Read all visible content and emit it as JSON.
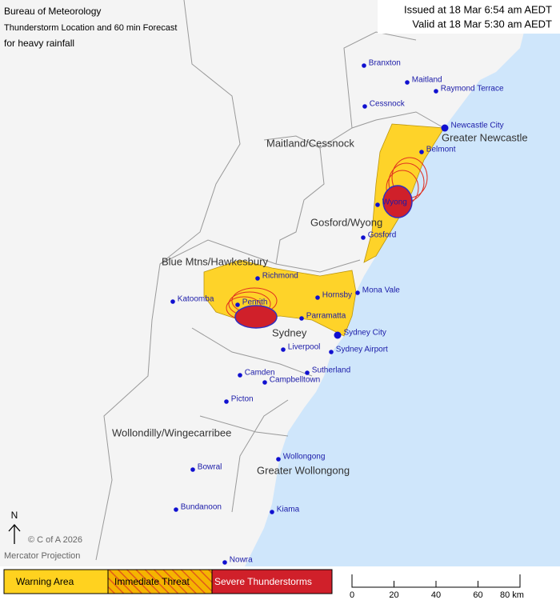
{
  "header": {
    "title": "Bureau of Meteorology",
    "subtitle": "Thunderstorm Location and 60 min Forecast",
    "hazard": "for heavy rainfall",
    "issued": "Issued at 18 Mar 6:54 am AEDT",
    "valid": "Valid at 18 Mar 5:30 am AEDT"
  },
  "regions": [
    "Maitland/Cessnock",
    "Greater Newcastle",
    "Gosford/Wyong",
    "Blue Mtns/Hawkesbury",
    "Sydney",
    "Wollondilly/Wingecarribee",
    "Greater Wollongong"
  ],
  "places": [
    "Branxton",
    "Maitland",
    "Raymond Terrace",
    "Cessnock",
    "Newcastle City",
    "Belmont",
    "Wyong",
    "Gosford",
    "Richmond",
    "Katoomba",
    "Penrith",
    "Hornsby",
    "Mona Vale",
    "Parramatta",
    "Sydney City",
    "Liverpool",
    "Sydney Airport",
    "Camden",
    "Sutherland",
    "Campbelltown",
    "Picton",
    "Wollongong",
    "Bowral",
    "Bundanoon",
    "Kiama",
    "Nowra"
  ],
  "legend": [
    "Warning Area",
    "Immediate Threat",
    "Severe Thunderstorms"
  ],
  "scale": [
    "0",
    "20",
    "40",
    "60",
    "80 km"
  ],
  "north": "N",
  "copyright": "© C of A 2026",
  "projection": "Mercator Projection"
}
